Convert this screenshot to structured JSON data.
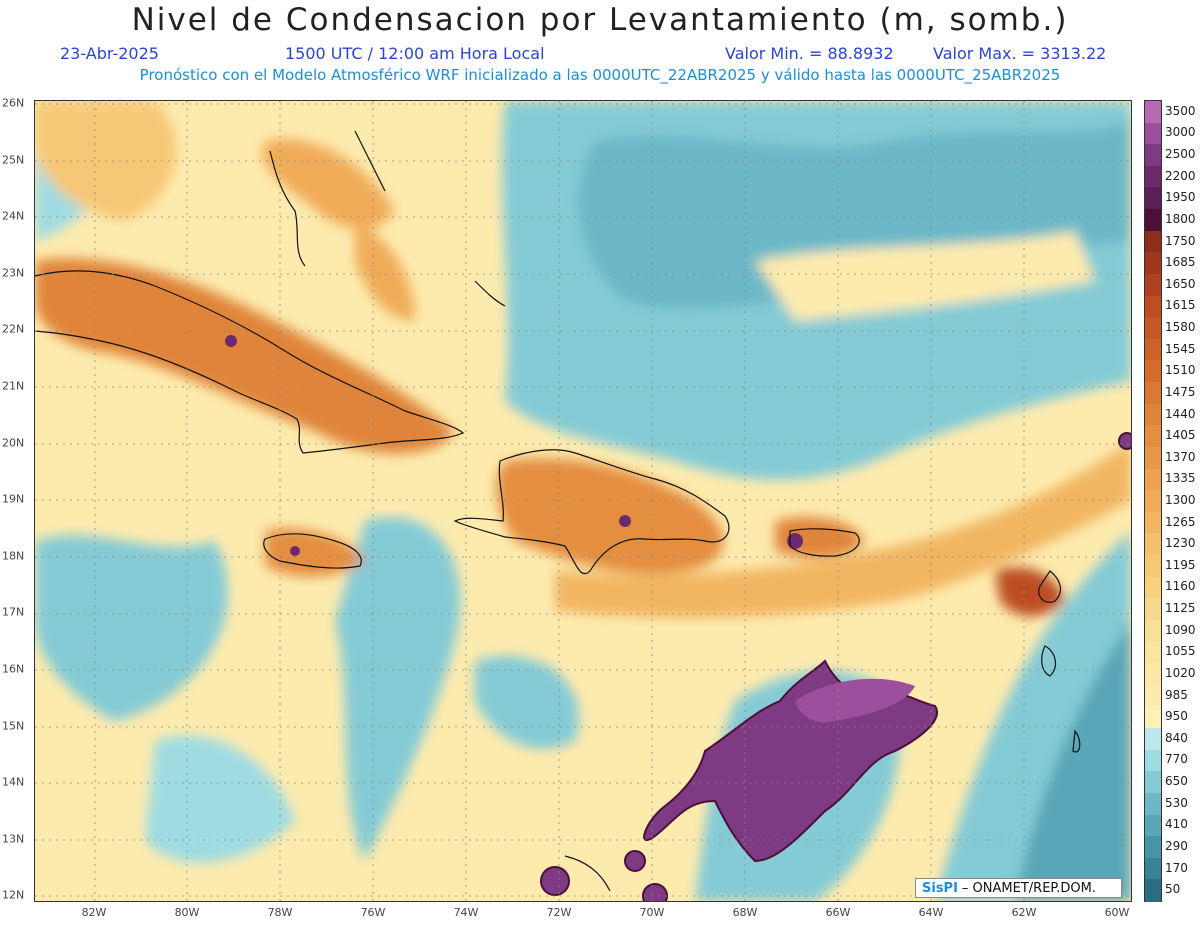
{
  "title": "Nivel de Condensacion por Levantamiento (m, somb.)",
  "date": "23-Abr-2025",
  "time": "1500 UTC / 12:00 am Hora Local",
  "min_label": "Valor Min. = 88.8932",
  "max_label": "Valor Max. = 3313.22",
  "subtitle": "Pronóstico con el Modelo Atmosférico WRF inicializado a las 0000UTC_22ABR2025 y válido hasta las  0000UTC_25ABR2025",
  "credit": {
    "logo": "SisPI",
    "text": "– ONAMET/REP.DOM."
  },
  "lat_labels": [
    "26N",
    "25N",
    "24N",
    "23N",
    "22N",
    "21N",
    "20N",
    "19N",
    "18N",
    "17N",
    "16N",
    "15N",
    "14N",
    "13N",
    "12N"
  ],
  "lon_labels": [
    "82W",
    "80W",
    "78W",
    "76W",
    "74W",
    "72W",
    "70W",
    "68W",
    "66W",
    "64W",
    "62W",
    "60W"
  ],
  "colorbar": {
    "labels": [
      "3500",
      "3000",
      "2500",
      "2200",
      "1950",
      "1800",
      "1750",
      "1685",
      "1650",
      "1615",
      "1580",
      "1545",
      "1510",
      "1475",
      "1440",
      "1405",
      "1370",
      "1335",
      "1300",
      "1265",
      "1230",
      "1195",
      "1160",
      "1125",
      "1090",
      "1055",
      "1020",
      "985",
      "950",
      "840",
      "770",
      "650",
      "530",
      "410",
      "290",
      "170",
      "50"
    ],
    "colors": [
      "#b46ab4",
      "#9c4f9c",
      "#7e3a82",
      "#6c2a6c",
      "#5a1e58",
      "#4a1038",
      "#8c2e1c",
      "#a0381e",
      "#ae4220",
      "#bc4e22",
      "#c45826",
      "#cc622a",
      "#d46c2e",
      "#da7834",
      "#e0843a",
      "#e48e40",
      "#e89848",
      "#eca250",
      "#f0ac58",
      "#f2b662",
      "#f4c06c",
      "#f6c876",
      "#f8d080",
      "#f8d88c",
      "#fadf96",
      "#fbe49e",
      "#fce8a6",
      "#fdebae",
      "#fef0b6",
      "#bfe8ea",
      "#9fdce2",
      "#84cbd6",
      "#6cb8c8",
      "#58a6b8",
      "#4694a8",
      "#3a8298",
      "#2a6c84"
    ]
  }
}
